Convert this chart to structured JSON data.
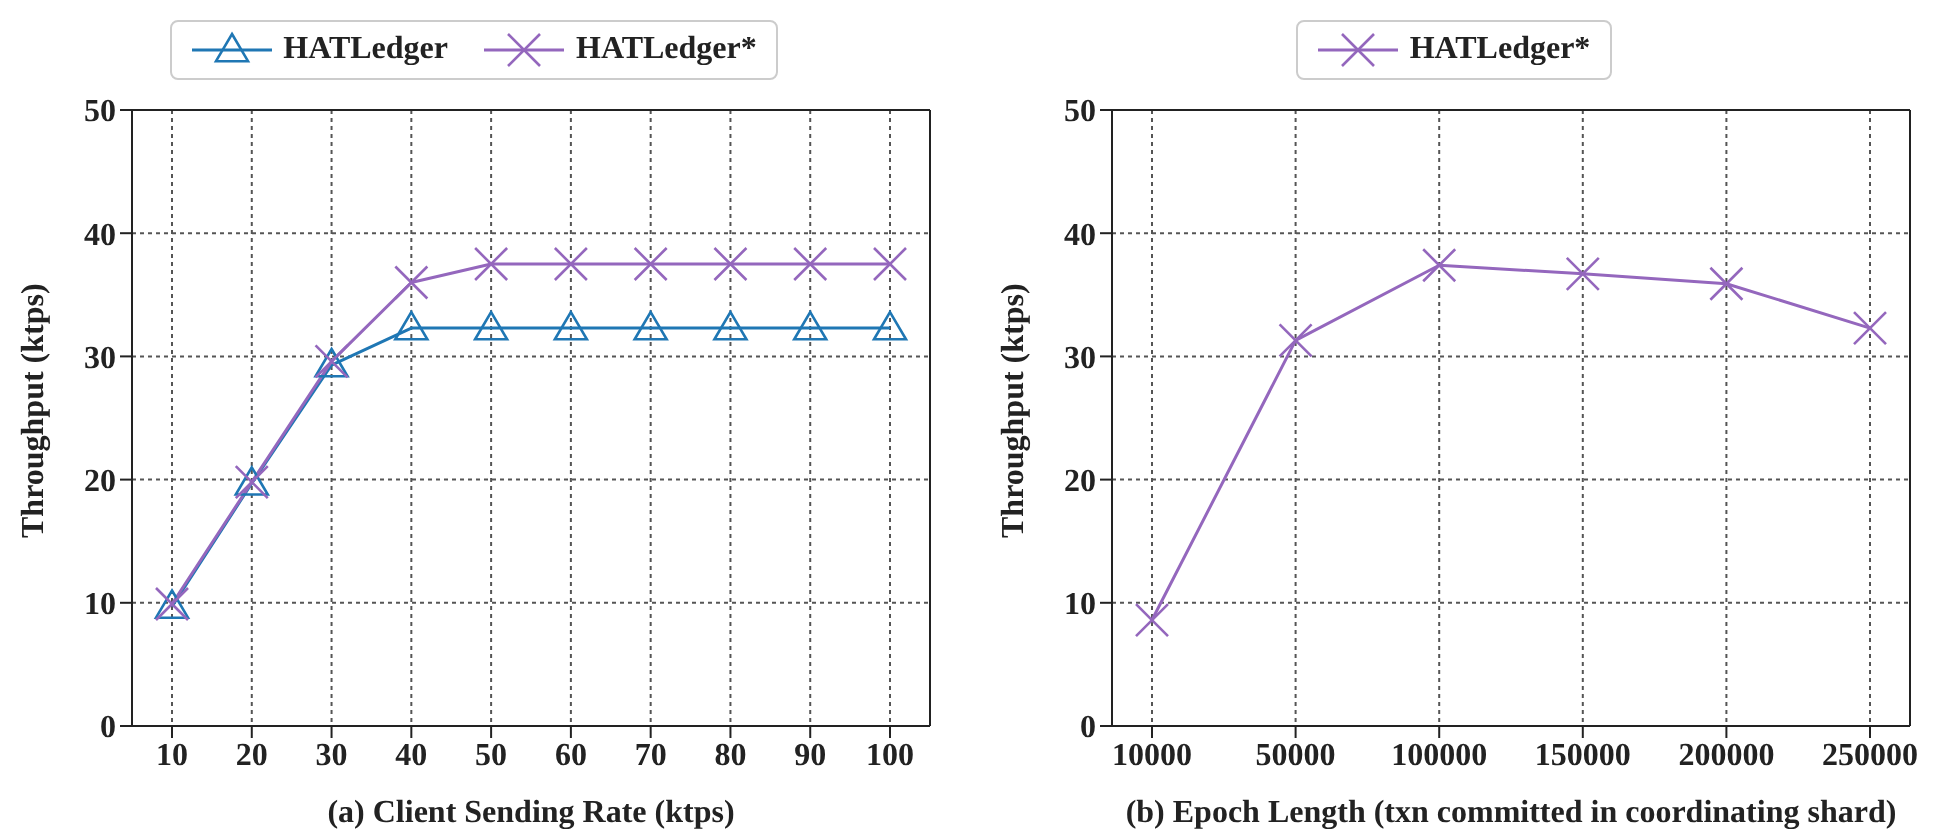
{
  "chart_data": [
    {
      "type": "line",
      "xlabel": "(a) Client Sending Rate (ktps)",
      "ylabel": "Throughput (ktps)",
      "categories": [
        "10",
        "20",
        "30",
        "40",
        "50",
        "60",
        "70",
        "80",
        "90",
        "100"
      ],
      "series": [
        {
          "name": "HATLedger",
          "color": "#1f77b4",
          "marker": "triangle",
          "values": [
            9.7,
            19.7,
            29.3,
            32.3,
            32.3,
            32.3,
            32.3,
            32.3,
            32.3,
            32.3
          ]
        },
        {
          "name": "HATLedger*",
          "color": "#9467bd",
          "marker": "cross",
          "values": [
            9.9,
            19.8,
            29.6,
            36.0,
            37.5,
            37.5,
            37.5,
            37.5,
            37.5,
            37.5
          ]
        }
      ],
      "ylim": [
        0,
        50
      ],
      "yticks": [
        0,
        10,
        20,
        30,
        40,
        50
      ],
      "grid": true,
      "legend": "top",
      "line_style": "solid"
    },
    {
      "type": "line",
      "xlabel": "(b) Epoch Length (txn committed in coordinating shard)",
      "ylabel": "Throughput (ktps)",
      "categories": [
        "10000",
        "50000",
        "100000",
        "150000",
        "200000",
        "250000"
      ],
      "series": [
        {
          "name": "HATLedger*",
          "color": "#9467bd",
          "marker": "cross",
          "values": [
            8.6,
            31.3,
            37.4,
            36.7,
            35.9,
            32.3
          ]
        }
      ],
      "ylim": [
        0,
        50
      ],
      "yticks": [
        0,
        10,
        20,
        30,
        40,
        50
      ],
      "grid": true,
      "legend": "top",
      "line_style": "solid"
    }
  ]
}
